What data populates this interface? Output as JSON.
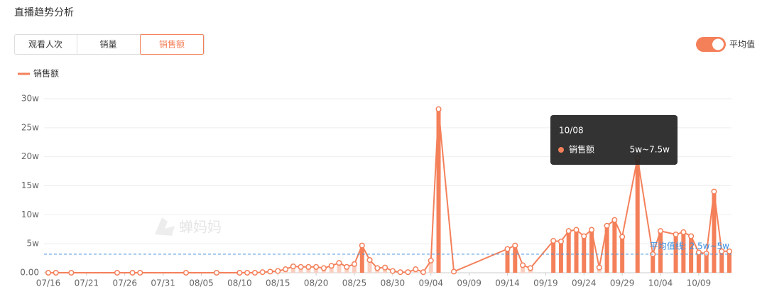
{
  "chart_data": {
    "type": "line",
    "title": "直播趋势分析",
    "x": [
      "07/16",
      "07/17",
      "07/19",
      "07/25",
      "07/27",
      "07/28",
      "08/03",
      "08/07",
      "08/10",
      "08/11",
      "08/12",
      "08/13",
      "08/14",
      "08/15",
      "08/16",
      "08/17",
      "08/18",
      "08/19",
      "08/20",
      "08/21",
      "08/22",
      "08/23",
      "08/24",
      "08/25",
      "08/26",
      "08/27",
      "08/28",
      "08/29",
      "08/30",
      "08/31",
      "09/01",
      "09/02",
      "09/03",
      "09/04",
      "09/05",
      "09/07",
      "09/14",
      "09/15",
      "09/16",
      "09/17",
      "09/20",
      "09/21",
      "09/22",
      "09/23",
      "09/24",
      "09/25",
      "09/26",
      "09/27",
      "09/28",
      "09/29",
      "10/01",
      "10/03",
      "10/04",
      "10/06",
      "10/07",
      "10/08",
      "10/09",
      "10/10",
      "10/11",
      "10/12",
      "10/13"
    ],
    "series": [
      {
        "name": "销售额",
        "color": "#f4805a",
        "values": [
          0,
          0,
          0,
          0,
          0,
          0,
          0,
          0,
          0,
          0,
          0,
          0.1,
          0.2,
          0.3,
          0.6,
          1.1,
          1.0,
          1.0,
          1.0,
          0.8,
          1.2,
          1.7,
          1.0,
          1.5,
          4.7,
          2.2,
          0.8,
          0.9,
          0.3,
          0.1,
          0.1,
          0.6,
          0.1,
          2.1,
          28.2,
          0.2,
          4.1,
          4.7,
          1.3,
          0.8,
          5.5,
          5.4,
          7.2,
          7.4,
          6.3,
          7.4,
          0.9,
          8.1,
          9.1,
          6.2,
          19.8,
          3.2,
          7.2,
          6.6,
          7.0,
          6.3,
          3.5,
          3.3,
          14.0,
          3.7,
          3.7
        ]
      }
    ],
    "below_average_color": "#fbcfc0",
    "xlim": [
      "07/16",
      "10/13"
    ],
    "xticks": [
      "07/16",
      "07/21",
      "07/26",
      "07/31",
      "08/05",
      "08/10",
      "08/15",
      "08/20",
      "08/25",
      "08/30",
      "09/04",
      "09/09",
      "09/14",
      "09/19",
      "09/24",
      "09/29",
      "10/04",
      "10/09"
    ],
    "ylim": [
      0,
      30
    ],
    "yticks": [
      {
        "value": 0,
        "label": "0.00"
      },
      {
        "value": 5,
        "label": "5w"
      },
      {
        "value": 10,
        "label": "10w"
      },
      {
        "value": 15,
        "label": "15w"
      },
      {
        "value": 20,
        "label": "20w"
      },
      {
        "value": 25,
        "label": "25w"
      },
      {
        "value": 30,
        "label": "30w"
      }
    ],
    "grid": true,
    "average_line": {
      "value": 3.2,
      "label": "平均值线: 2.5w~5w",
      "color": "#3b8fe0"
    },
    "tooltip": {
      "date": "10/08",
      "series": "销售额",
      "value": "5w~7.5w"
    }
  },
  "tabs": [
    "观看人次",
    "销量",
    "销售额"
  ],
  "active_tab": 2,
  "toggle_label": "平均值",
  "watermark": "蝉妈妈"
}
